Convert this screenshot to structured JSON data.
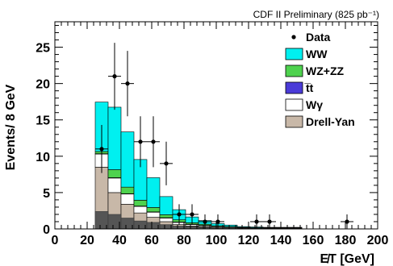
{
  "chart_data": {
    "type": "bar",
    "stacked": true,
    "title": "CDF II Preliminary (825 pb⁻¹)",
    "xlabel": "E̸T [GeV]",
    "ylabel": "Events/ 8 GeV",
    "xlim": [
      0,
      200
    ],
    "ylim": [
      0,
      28.5
    ],
    "bin_width": 8,
    "x_ticks": [
      "0",
      "20",
      "40",
      "60",
      "80",
      "100",
      "120",
      "140",
      "160",
      "180",
      "200"
    ],
    "y_ticks": [
      "0",
      "5",
      "10",
      "15",
      "20",
      "25"
    ],
    "bin_edges": [
      25,
      33,
      41,
      49,
      57,
      65,
      73,
      81,
      89,
      97,
      105,
      113,
      121,
      129,
      137,
      145,
      153
    ],
    "series": [
      {
        "name": "Drell-Yan",
        "color": "#c8b8a8",
        "values": [
          8.5,
          5.0,
          3.4,
          2.2,
          1.6,
          1.0,
          0.6,
          0.4,
          0.3,
          0.2,
          0.1,
          0.1,
          0.05,
          0.05,
          0.05,
          0.05
        ]
      },
      {
        "name": "Wγ",
        "color": "#ffffff",
        "values": [
          1.8,
          2.0,
          1.4,
          0.9,
          0.7,
          0.5,
          0.3,
          0.2,
          0.15,
          0.1,
          0.1,
          0.05,
          0.05,
          0.05,
          0.05,
          0.05
        ]
      },
      {
        "name": "t̅t",
        "color": "#4a3bd8",
        "values": [
          0.05,
          0.05,
          0.05,
          0.05,
          0.05,
          0.05,
          0.05,
          0.05,
          0.05,
          0.03,
          0.03,
          0.02,
          0.02,
          0.02,
          0.02,
          0.02
        ]
      },
      {
        "name": "WZ+ZZ",
        "color": "#4ed24e",
        "values": [
          0.3,
          1.1,
          0.9,
          0.8,
          0.6,
          0.4,
          0.3,
          0.2,
          0.15,
          0.1,
          0.1,
          0.05,
          0.05,
          0.05,
          0.05,
          0.05
        ]
      },
      {
        "name": "WW",
        "color": "#00f0f0",
        "values": [
          6.8,
          8.6,
          7.6,
          5.6,
          4.1,
          2.5,
          1.4,
          0.8,
          0.5,
          0.3,
          0.2,
          0.1,
          0.1,
          0.05,
          0.05,
          0.05
        ]
      }
    ],
    "dark_base": {
      "color": "#555555",
      "values": [
        2.4,
        2.0,
        1.5,
        1.1,
        0.9,
        0.6,
        0.4,
        0.3,
        0.2,
        0.1,
        0.1,
        0.05,
        0.05,
        0.05,
        0.05,
        0.05
      ]
    },
    "data_points": [
      {
        "x": 29,
        "y": 11,
        "err": 3.3
      },
      {
        "x": 37,
        "y": 21,
        "err": 4.6
      },
      {
        "x": 45,
        "y": 20,
        "err": 4.5
      },
      {
        "x": 53,
        "y": 12,
        "err": 3.5
      },
      {
        "x": 61,
        "y": 12,
        "err": 3.5
      },
      {
        "x": 69,
        "y": 9,
        "err": 3.0
      },
      {
        "x": 77,
        "y": 2,
        "err": 1.4
      },
      {
        "x": 85,
        "y": 2,
        "err": 1.4
      },
      {
        "x": 93,
        "y": 1,
        "err": 1.0
      },
      {
        "x": 101,
        "y": 1,
        "err": 1.0
      },
      {
        "x": 125,
        "y": 1,
        "err": 1.0
      },
      {
        "x": 133,
        "y": 1,
        "err": 1.0
      },
      {
        "x": 181,
        "y": 1,
        "err": 1.0
      }
    ],
    "legend": {
      "placement": "top-right",
      "entries": [
        {
          "label": "Data",
          "kind": "marker"
        },
        {
          "label": "WW",
          "color": "#00f0f0"
        },
        {
          "label": "WZ+ZZ",
          "color": "#4ed24e"
        },
        {
          "label": "t̅t",
          "color": "#4a3bd8"
        },
        {
          "label": "Wγ",
          "color": "#ffffff"
        },
        {
          "label": "Drell-Yan",
          "color": "#c8b8a8"
        }
      ]
    }
  }
}
